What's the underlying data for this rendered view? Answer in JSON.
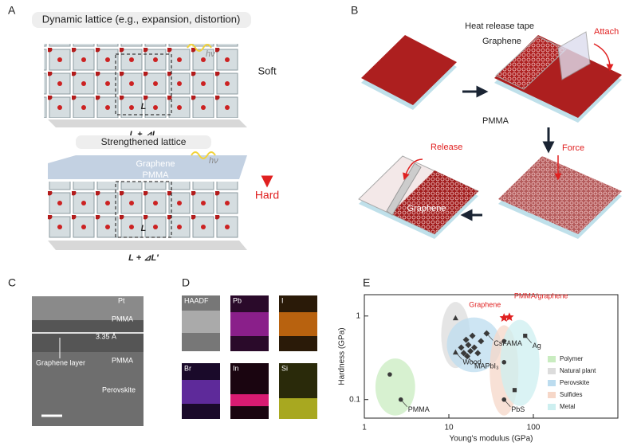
{
  "panels": {
    "a": {
      "label": "A",
      "title": "Dynamic lattice (e.g., expansion, distortion)",
      "photon_1": "hν",
      "length_1": "L + ⊿L",
      "cell_1": "L",
      "soft": "Soft",
      "hard": "Hard",
      "subtitle": "Strengthened lattice",
      "graphene": "Graphene",
      "pmma": "PMMA",
      "photon_2": "hν",
      "length_2": "L + ⊿L′",
      "cell_2": "L"
    },
    "b": {
      "label": "B",
      "tape": "Heat release tape",
      "graphene_1": "Graphene",
      "attach": "Attach",
      "pmma": "PMMA",
      "force": "Force",
      "release": "Release",
      "graphene_2": "Graphene"
    },
    "c": {
      "label": "C",
      "pt": "Pt",
      "pmma_1": "PMMA",
      "spacing": "3.35 Å",
      "layer": "Graphene layer",
      "pmma_2": "PMMA",
      "perovskite": "Perovskite"
    },
    "d": {
      "label": "D",
      "tiles": [
        "HAADF",
        "Pb",
        "I",
        "Br",
        "In",
        "Si"
      ]
    }
  },
  "chart_data": {
    "label": "E",
    "type": "scatter",
    "x_label": "Young's modulus (GPa)",
    "y_label": "Hardness (GPa)",
    "xscale": "log",
    "yscale": "log",
    "xlim": [
      1,
      1000
    ],
    "ylim": [
      0.06,
      1.8
    ],
    "xticks": [
      1,
      10,
      100
    ],
    "yticks": [
      0.1,
      1
    ],
    "legend": "lower right",
    "marker_color": "#3a3a3a",
    "series": [
      {
        "name": "Polymer",
        "color": "#c9ecc0",
        "marker": "circle",
        "x": [
          2,
          2.7
        ],
        "values": [
          0.2,
          0.1
        ],
        "point_labels": [
          null,
          "PMMA"
        ]
      },
      {
        "name": "Natural plant",
        "color": "#dcdcdc",
        "marker": "triangle",
        "x": [
          12,
          12
        ],
        "values": [
          0.95,
          0.37
        ],
        "point_labels": [
          null,
          "Wood"
        ]
      },
      {
        "name": "Perovskite",
        "color": "#bcdcef",
        "marker": "diamond",
        "x": [
          14,
          15,
          16,
          16.5,
          17,
          18,
          19,
          20,
          22,
          24,
          28
        ],
        "values": [
          0.42,
          0.36,
          0.52,
          0.33,
          0.45,
          0.38,
          0.58,
          0.42,
          0.36,
          0.5,
          0.62
        ],
        "point_labels": [
          null,
          null,
          null,
          "MAPbI₃",
          null,
          null,
          null,
          null,
          null,
          null,
          "CsFAMA"
        ]
      },
      {
        "name": "Sulfides",
        "color": "#f6d7c8",
        "marker": "circle",
        "x": [
          45,
          45,
          45
        ],
        "values": [
          0.5,
          0.28,
          0.1
        ],
        "point_labels": [
          null,
          null,
          "PbS"
        ]
      },
      {
        "name": "Metal",
        "color": "#cdeff0",
        "marker": "square",
        "x": [
          80,
          60
        ],
        "values": [
          0.58,
          0.13
        ],
        "point_labels": [
          "Ag",
          null
        ]
      }
    ],
    "highlights": [
      {
        "name": "Graphene",
        "color": "#e02020",
        "marker": "star",
        "x": 45,
        "y": 0.95
      },
      {
        "name": "PMMA/graphene",
        "color": "#e02020",
        "marker": "star",
        "x": 52,
        "y": 0.97
      }
    ]
  }
}
